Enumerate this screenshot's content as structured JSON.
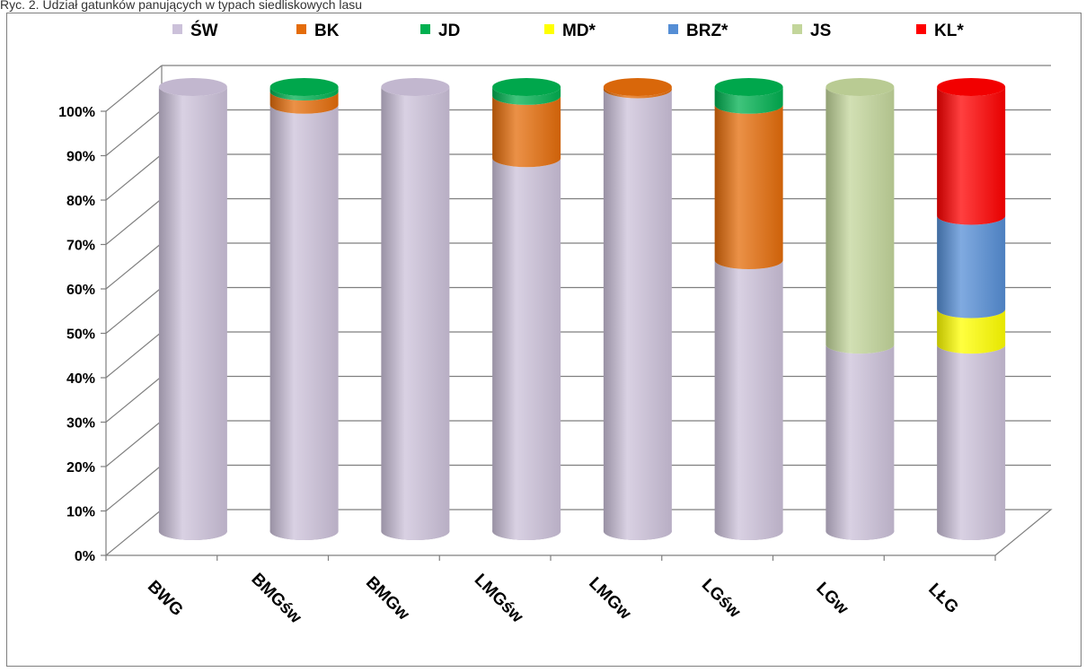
{
  "caption": "Ryc. 2. Udział gatunków panujących w typach siedliskowych lasu",
  "chart_data": {
    "type": "bar",
    "stacked": true,
    "style": "3d-cylinder",
    "categories": [
      "BWG",
      "BMGśw",
      "BMGw",
      "LMGśw",
      "LMGw",
      "LGśw",
      "LGw",
      "LŁG"
    ],
    "series": [
      {
        "name": "ŚW",
        "color": "#ccc1da",
        "values": [
          100,
          96,
          100,
          84,
          99.5,
          61,
          42,
          42
        ]
      },
      {
        "name": "BK",
        "color": "#e46c0a",
        "values": [
          0,
          3,
          0,
          14,
          0.5,
          35,
          0,
          0
        ]
      },
      {
        "name": "JD",
        "color": "#00b050",
        "values": [
          0,
          1,
          0,
          2,
          0,
          4,
          0,
          0
        ]
      },
      {
        "name": "MD*",
        "color": "#ffff00",
        "values": [
          0,
          0,
          0,
          0,
          0,
          0,
          0,
          8
        ]
      },
      {
        "name": "BRZ*",
        "color": "#558ed5",
        "values": [
          0,
          0,
          0,
          0,
          0,
          0,
          0,
          21
        ]
      },
      {
        "name": "JS",
        "color": "#c3d69b",
        "values": [
          0,
          0,
          0,
          0,
          0,
          0,
          58,
          0
        ]
      },
      {
        "name": "KL*",
        "color": "#ff0000",
        "values": [
          0,
          0,
          0,
          0,
          0,
          0,
          0,
          29
        ]
      }
    ],
    "y_ticks": [
      "0%",
      "10%",
      "20%",
      "30%",
      "40%",
      "50%",
      "60%",
      "70%",
      "80%",
      "90%",
      "100%"
    ],
    "ylim": [
      0,
      100
    ],
    "grid": true,
    "legend_position": "top"
  }
}
